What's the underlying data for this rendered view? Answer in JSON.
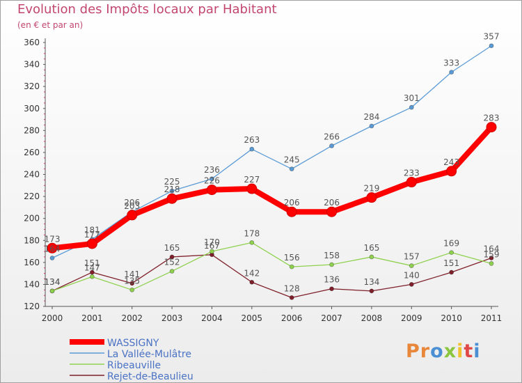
{
  "header": {
    "title": "Evolution des Impôts locaux par Habitant",
    "subtitle": "(en € et par an)"
  },
  "logo": {
    "text": "Proxiti",
    "letters": [
      "P",
      "r",
      "o",
      "x",
      "i",
      "t",
      "i"
    ]
  },
  "chart_data": {
    "type": "line",
    "title": "Evolution des Impôts locaux par Habitant",
    "subtitle": "(en € et par an)",
    "xlabel": "",
    "ylabel": "",
    "x": [
      2000,
      2001,
      2002,
      2003,
      2004,
      2005,
      2006,
      2007,
      2008,
      2009,
      2010,
      2011
    ],
    "ylim": [
      120,
      360
    ],
    "yticks": [
      120,
      140,
      160,
      180,
      200,
      220,
      240,
      260,
      280,
      300,
      320,
      340,
      360
    ],
    "grid": false,
    "legend_placement": "bottom-left",
    "series": [
      {
        "name": "WASSIGNY",
        "color": "#ff0000",
        "values": [
          173,
          177,
          203,
          218,
          226,
          227,
          206,
          206,
          219,
          233,
          243,
          283
        ],
        "labels": [
          "173",
          "177",
          "203",
          "218",
          "226",
          "227",
          "206",
          "206",
          "219",
          "233",
          "243",
          "283"
        ]
      },
      {
        "name": "La Vallée-Mulâtre",
        "color": "#5b9bd5",
        "values": [
          164,
          181,
          206,
          225,
          236,
          263,
          245,
          266,
          284,
          301,
          333,
          357
        ],
        "labels": [
          "164",
          "181",
          "206",
          "225",
          "236",
          "263",
          "245",
          "266",
          "284",
          "301",
          "333",
          "357"
        ]
      },
      {
        "name": "Ribeauville",
        "color": "#8fd14f",
        "values": [
          134,
          147,
          135,
          152,
          170,
          178,
          156,
          158,
          165,
          157,
          169,
          159
        ],
        "labels": [
          "134",
          "147",
          "135",
          "152",
          "170",
          "178",
          "156",
          "158",
          "165",
          "157",
          "169",
          "159"
        ]
      },
      {
        "name": "Rejet-de-Beaulieu",
        "color": "#7f1f2a",
        "values": [
          134,
          151,
          141,
          165,
          167,
          142,
          128,
          136,
          134,
          140,
          151,
          164
        ],
        "labels": [
          "134",
          "151",
          "141",
          "165",
          "167",
          "142",
          "128",
          "136",
          "134",
          "140",
          "151",
          "164"
        ]
      }
    ]
  }
}
